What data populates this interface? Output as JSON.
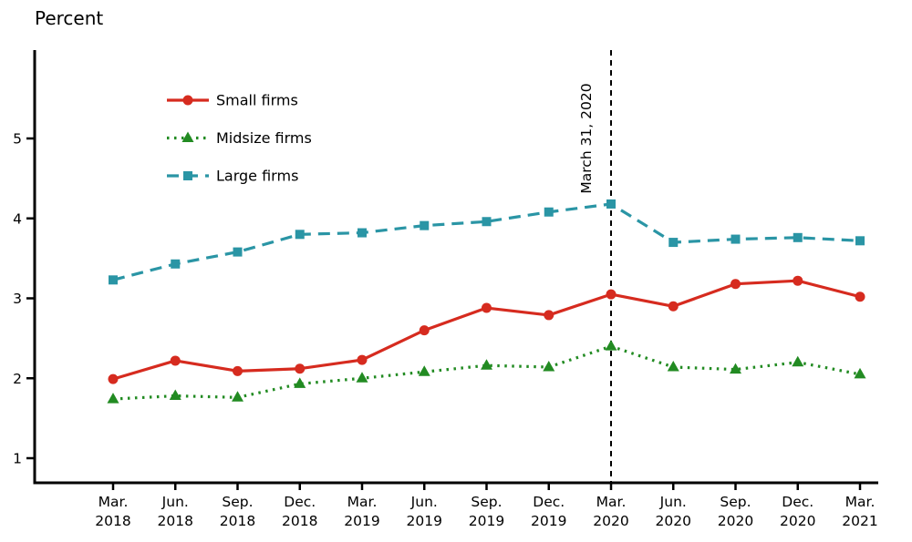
{
  "page_title": "Percent",
  "chart_data": {
    "type": "line",
    "title": "Percent",
    "ylabel": "Percent",
    "ylim": [
      0.7,
      6.1
    ],
    "yticks": [
      1,
      2,
      3,
      4,
      5
    ],
    "grid": false,
    "legend_position": "top-left-inside",
    "categories": [
      [
        "Mar.",
        "2018"
      ],
      [
        "Jun.",
        "2018"
      ],
      [
        "Sep.",
        "2018"
      ],
      [
        "Dec.",
        "2018"
      ],
      [
        "Mar.",
        "2019"
      ],
      [
        "Jun.",
        "2019"
      ],
      [
        "Sep.",
        "2019"
      ],
      [
        "Dec.",
        "2019"
      ],
      [
        "Mar.",
        "2020"
      ],
      [
        "Jun.",
        "2020"
      ],
      [
        "Sep.",
        "2020"
      ],
      [
        "Dec.",
        "2020"
      ],
      [
        "Mar.",
        "2021"
      ]
    ],
    "series": [
      {
        "name": "Small firms",
        "color": "#d62b1f",
        "marker": "circle",
        "dash": "solid",
        "values": [
          1.99,
          2.22,
          2.09,
          2.12,
          2.23,
          2.6,
          2.88,
          2.79,
          3.05,
          2.9,
          3.18,
          3.22,
          3.02
        ]
      },
      {
        "name": "Midsize firms",
        "color": "#228b22",
        "marker": "triangle",
        "dash": "dotted",
        "values": [
          1.74,
          1.78,
          1.76,
          1.93,
          2.0,
          2.08,
          2.16,
          2.14,
          2.4,
          2.14,
          2.11,
          2.2,
          2.05
        ]
      },
      {
        "name": "Large firms",
        "color": "#2a95a5",
        "marker": "square",
        "dash": "dashed",
        "values": [
          3.23,
          3.43,
          3.58,
          3.8,
          3.82,
          3.91,
          3.96,
          4.08,
          4.18,
          3.7,
          3.74,
          3.76,
          3.72
        ]
      }
    ],
    "annotation": {
      "label": "March 31, 2020",
      "x_category_index": 8
    },
    "axis_color": "#000000",
    "text_color": "#000000"
  }
}
